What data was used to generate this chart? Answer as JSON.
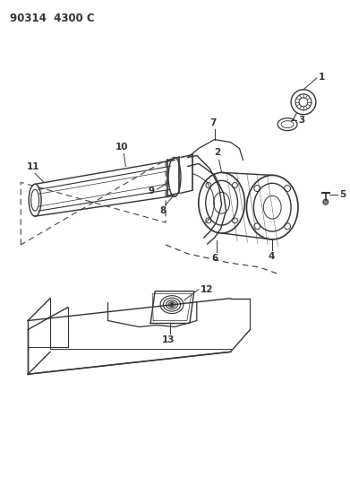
{
  "title": "90314  4300 C",
  "bg_color": "#ffffff",
  "line_color": "#333333",
  "title_fontsize": 8.5,
  "label_fontsize": 7.5,
  "fig_width": 3.91,
  "fig_height": 5.33,
  "dpi": 100
}
